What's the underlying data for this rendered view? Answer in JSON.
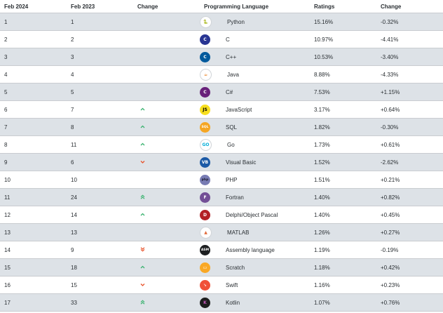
{
  "headers": [
    "Feb 2024",
    "Feb 2023",
    "Change",
    "Programming Language",
    "Ratings",
    "Change"
  ],
  "rows": [
    {
      "rank_now": "1",
      "rank_prev": "1",
      "trend": "",
      "icon": "python-icon",
      "language": "Python",
      "rating": "15.16%",
      "change": "-0.32%"
    },
    {
      "rank_now": "2",
      "rank_prev": "2",
      "trend": "",
      "icon": "c-icon",
      "language": "C",
      "rating": "10.97%",
      "change": "-4.41%"
    },
    {
      "rank_now": "3",
      "rank_prev": "3",
      "trend": "",
      "icon": "cpp-icon",
      "language": "C++",
      "rating": "10.53%",
      "change": "-3.40%"
    },
    {
      "rank_now": "4",
      "rank_prev": "4",
      "trend": "",
      "icon": "java-icon",
      "language": "Java",
      "rating": "8.88%",
      "change": "-4.33%"
    },
    {
      "rank_now": "5",
      "rank_prev": "5",
      "trend": "",
      "icon": "csharp-icon",
      "language": "C#",
      "rating": "7.53%",
      "change": "+1.15%"
    },
    {
      "rank_now": "6",
      "rank_prev": "7",
      "trend": "up",
      "icon": "javascript-icon",
      "language": "JavaScript",
      "rating": "3.17%",
      "change": "+0.64%"
    },
    {
      "rank_now": "7",
      "rank_prev": "8",
      "trend": "up",
      "icon": "sql-icon",
      "language": "SQL",
      "rating": "1.82%",
      "change": "-0.30%"
    },
    {
      "rank_now": "8",
      "rank_prev": "11",
      "trend": "up",
      "icon": "go-icon",
      "language": "Go",
      "rating": "1.73%",
      "change": "+0.61%"
    },
    {
      "rank_now": "9",
      "rank_prev": "6",
      "trend": "down",
      "icon": "visual-basic-icon",
      "language": "Visual Basic",
      "rating": "1.52%",
      "change": "-2.62%"
    },
    {
      "rank_now": "10",
      "rank_prev": "10",
      "trend": "",
      "icon": "php-icon",
      "language": "PHP",
      "rating": "1.51%",
      "change": "+0.21%"
    },
    {
      "rank_now": "11",
      "rank_prev": "24",
      "trend": "up2",
      "icon": "fortran-icon",
      "language": "Fortran",
      "rating": "1.40%",
      "change": "+0.82%"
    },
    {
      "rank_now": "12",
      "rank_prev": "14",
      "trend": "up",
      "icon": "delphi-icon",
      "language": "Delphi/Object Pascal",
      "rating": "1.40%",
      "change": "+0.45%"
    },
    {
      "rank_now": "13",
      "rank_prev": "13",
      "trend": "",
      "icon": "matlab-icon",
      "language": "MATLAB",
      "rating": "1.26%",
      "change": "+0.27%"
    },
    {
      "rank_now": "14",
      "rank_prev": "9",
      "trend": "down2",
      "icon": "assembly-icon",
      "language": "Assembly language",
      "rating": "1.19%",
      "change": "-0.19%"
    },
    {
      "rank_now": "15",
      "rank_prev": "18",
      "trend": "up",
      "icon": "scratch-icon",
      "language": "Scratch",
      "rating": "1.18%",
      "change": "+0.42%"
    },
    {
      "rank_now": "16",
      "rank_prev": "15",
      "trend": "down",
      "icon": "swift-icon",
      "language": "Swift",
      "rating": "1.16%",
      "change": "+0.23%"
    },
    {
      "rank_now": "17",
      "rank_prev": "33",
      "trend": "up2",
      "icon": "kotlin-icon",
      "language": "Kotlin",
      "rating": "1.07%",
      "change": "+0.76%"
    }
  ],
  "icon_styles": {
    "python-icon": {
      "bg": "#ffffff",
      "fg": "#3572a5",
      "glyph": "🐍",
      "shape": "round"
    },
    "c-icon": {
      "bg": "#283593",
      "fg": "#ffffff",
      "glyph": "C",
      "shape": "round"
    },
    "cpp-icon": {
      "bg": "#00599c",
      "fg": "#ffffff",
      "glyph": "C",
      "shape": "round"
    },
    "java-icon": {
      "bg": "#ffffff",
      "fg": "#e76f00",
      "glyph": "☕",
      "shape": "round"
    },
    "csharp-icon": {
      "bg": "#68217a",
      "fg": "#ffffff",
      "glyph": "C",
      "shape": "round"
    },
    "javascript-icon": {
      "bg": "#f7df1e",
      "fg": "#000000",
      "glyph": "JS",
      "shape": "round"
    },
    "sql-icon": {
      "bg": "#f5a623",
      "fg": "#ffffff",
      "glyph": "SQL",
      "shape": "round"
    },
    "go-icon": {
      "bg": "#ffffff",
      "fg": "#00add8",
      "glyph": "GO",
      "shape": "round"
    },
    "visual-basic-icon": {
      "bg": "#1c5aa6",
      "fg": "#ffffff",
      "glyph": "VB",
      "shape": "round"
    },
    "php-icon": {
      "bg": "#777bb3",
      "fg": "#1a1a2e",
      "glyph": "php",
      "shape": "round"
    },
    "fortran-icon": {
      "bg": "#734f96",
      "fg": "#ffffff",
      "glyph": "F",
      "shape": "round"
    },
    "delphi-icon": {
      "bg": "#b32025",
      "fg": "#ffffff",
      "glyph": "D",
      "shape": "round"
    },
    "matlab-icon": {
      "bg": "#ffffff",
      "fg": "#e16737",
      "glyph": "▲",
      "shape": "round"
    },
    "assembly-icon": {
      "bg": "#1d1f21",
      "fg": "#ffffff",
      "glyph": "ASM",
      "shape": "round"
    },
    "scratch-icon": {
      "bg": "#f9a825",
      "fg": "#ffffff",
      "glyph": "▭",
      "shape": "round"
    },
    "swift-icon": {
      "bg": "#f05138",
      "fg": "#ffffff",
      "glyph": "➘",
      "shape": "round"
    },
    "kotlin-icon": {
      "bg": "#1e1e1e",
      "fg": "#c757bc",
      "glyph": "K",
      "shape": "round"
    }
  },
  "colors": {
    "up": "#3cb371",
    "down": "#e8522a",
    "row_alt": "#dde2e7"
  }
}
